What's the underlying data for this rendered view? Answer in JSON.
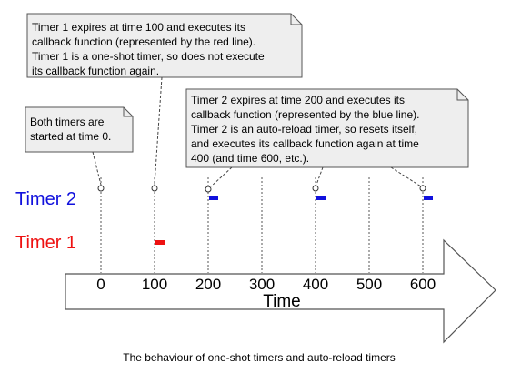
{
  "notes": {
    "timer1": [
      "Timer 1 expires at time 100 and executes its",
      "callback function (represented by the red line).",
      "Timer 1 is a one-shot timer, so does not execute",
      "its callback function again."
    ],
    "both": [
      "Both timers are",
      "started at time 0."
    ],
    "timer2": [
      "Timer 2 expires at time 200 and executes its",
      "callback function (represented by the blue line).",
      "Timer 2 is an auto-reload timer, so resets itself,",
      "and executes its callback function again at time",
      "400 (and time 600, etc.)."
    ]
  },
  "rows": {
    "timer2": "Timer 2",
    "timer1": "Timer 1"
  },
  "axis": {
    "title": "Time",
    "ticks": [
      "0",
      "100",
      "200",
      "300",
      "400",
      "500",
      "600"
    ]
  },
  "caption": "The behaviour of one-shot timers and auto-reload timers",
  "colors": {
    "timer1": "#ee1111",
    "timer2": "#1111dd",
    "note_fill": "#eeeeee",
    "note_stroke": "#555555"
  }
}
